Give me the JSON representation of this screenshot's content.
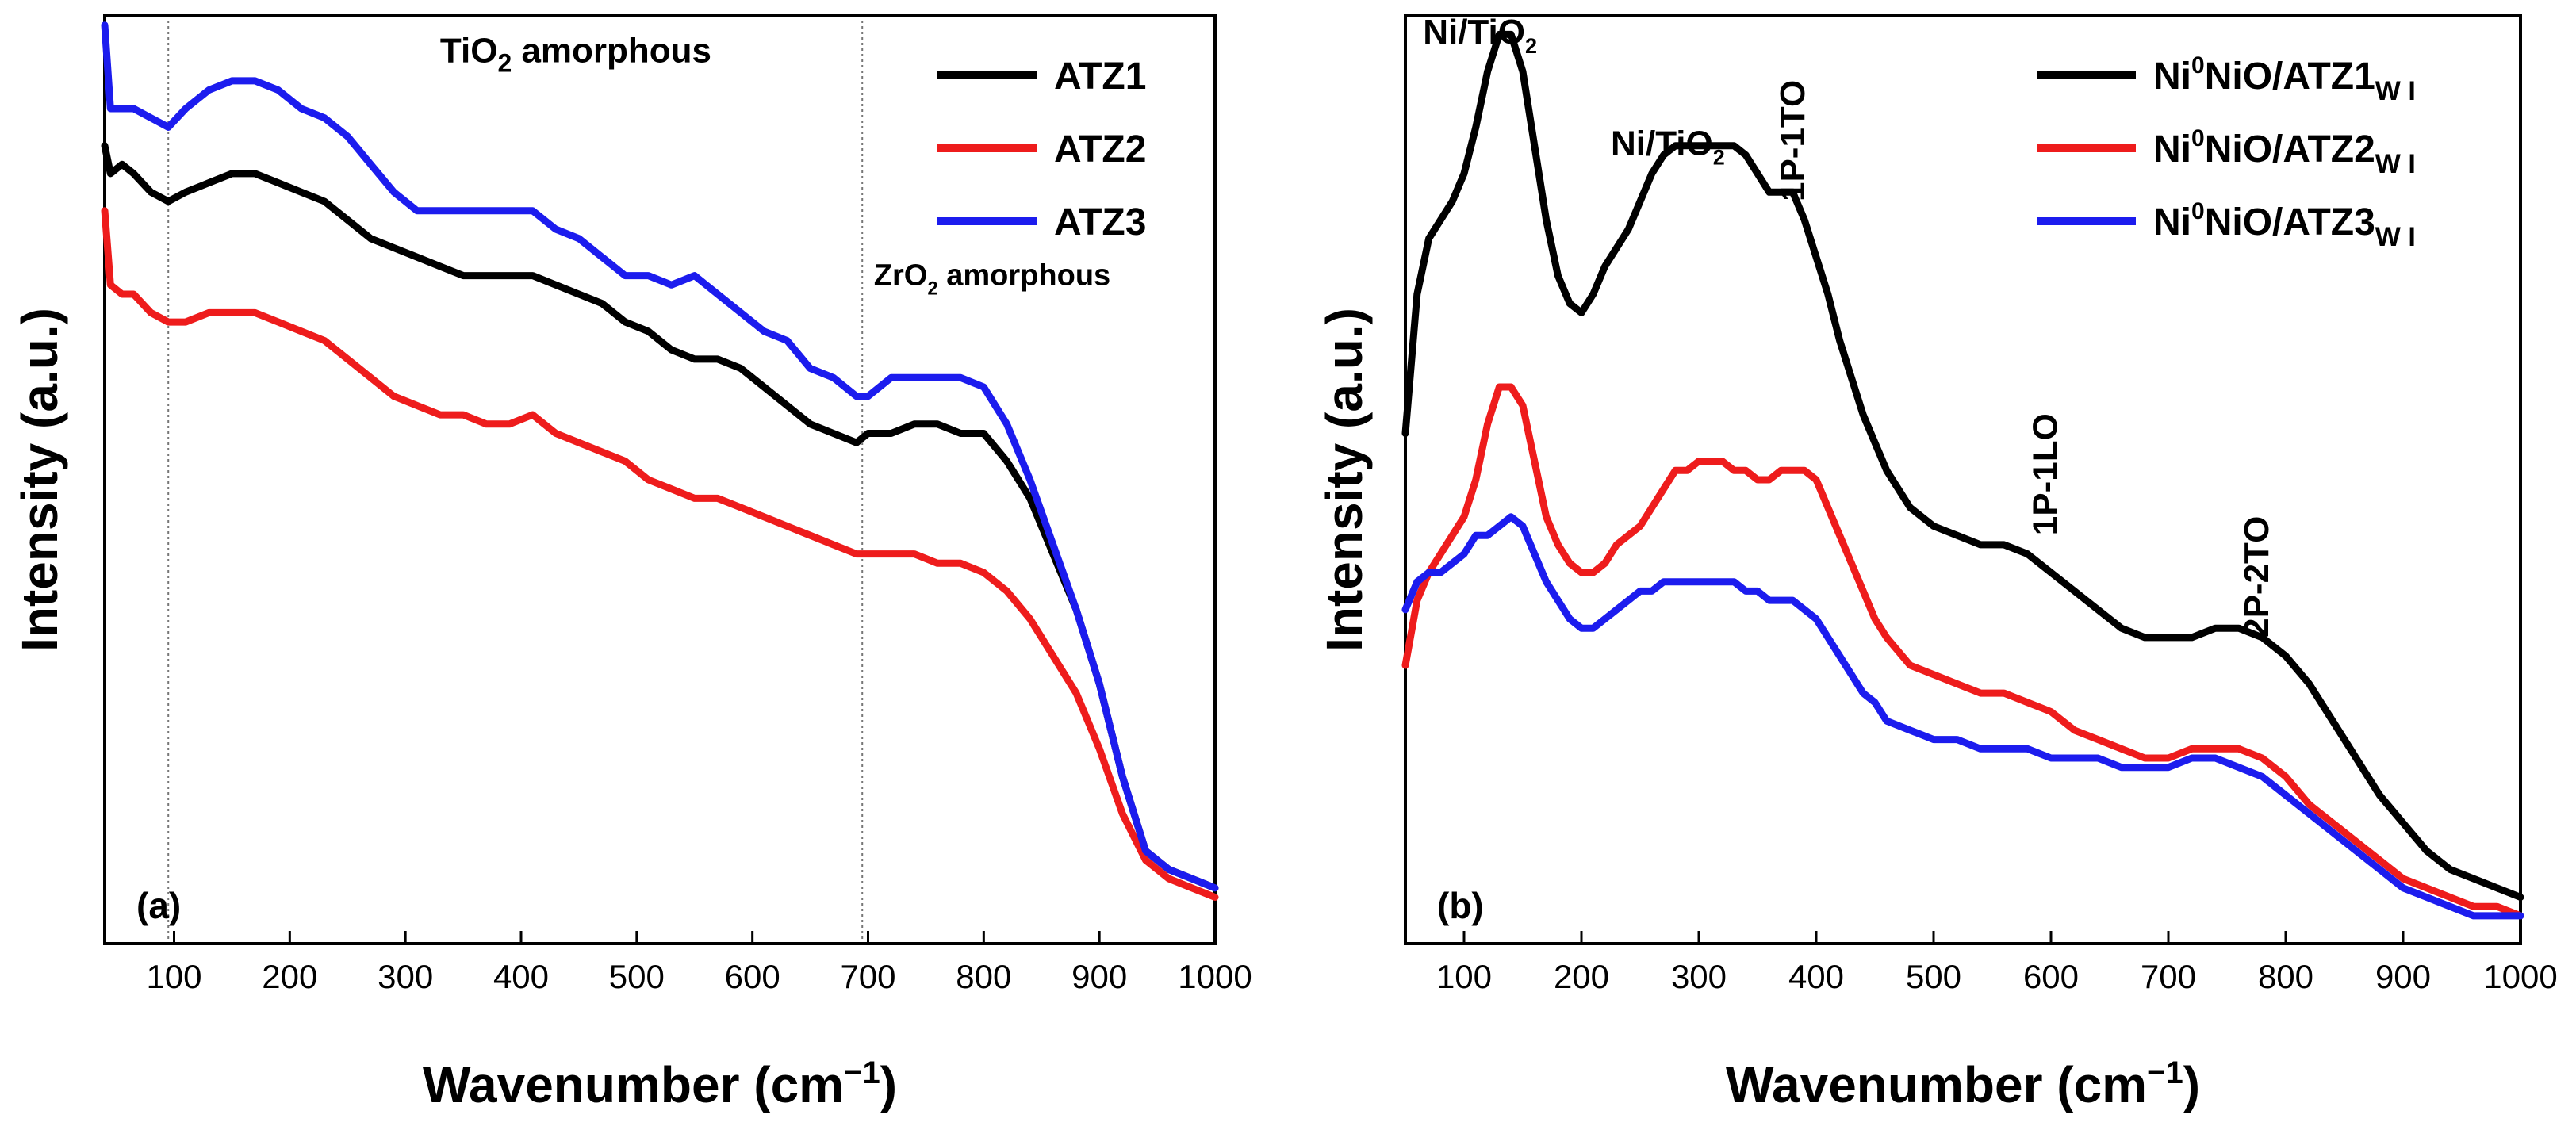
{
  "chart_data": [
    {
      "type": "line",
      "panel_label": "(a)",
      "xlabel": "Wavenumber (cm",
      "xlabel_sup": "−1",
      "xlabel_end": ")",
      "ylabel": "Intensity (a.u.)",
      "xlim": [
        40,
        1000
      ],
      "ylim": [
        0,
        1
      ],
      "x_ticks": [
        100,
        200,
        300,
        400,
        500,
        600,
        700,
        800,
        900,
        1000
      ],
      "x_tick_labels": [
        "100",
        "200",
        "300",
        "400",
        "500",
        "600",
        "700",
        "800",
        "900",
        "1000"
      ],
      "reference_lines": [
        95,
        695
      ],
      "legend": {
        "position": "top-right",
        "entries": [
          "ATZ1",
          "ATZ2",
          "ATZ3"
        ]
      },
      "annotations": [
        {
          "base": "TiO",
          "sub": "2",
          "rest": "  amorphous",
          "x": 330,
          "y": 0.95,
          "style": "large"
        },
        {
          "base": "ZrO",
          "sub": "2",
          "rest": " amorphous",
          "x": 705,
          "y": 0.71,
          "style": "small"
        }
      ],
      "series": [
        {
          "name": "ATZ1",
          "color": "#000000",
          "x": [
            40,
            45,
            55,
            65,
            80,
            95,
            110,
            130,
            150,
            170,
            190,
            210,
            230,
            250,
            270,
            290,
            310,
            330,
            350,
            370,
            390,
            410,
            430,
            450,
            470,
            490,
            510,
            530,
            550,
            570,
            590,
            610,
            630,
            650,
            670,
            690,
            700,
            720,
            740,
            760,
            780,
            800,
            820,
            840,
            860,
            880,
            900,
            920,
            940,
            960,
            980,
            1000
          ],
          "y": [
            0.86,
            0.83,
            0.84,
            0.83,
            0.81,
            0.8,
            0.81,
            0.82,
            0.83,
            0.83,
            0.82,
            0.81,
            0.8,
            0.78,
            0.76,
            0.75,
            0.74,
            0.73,
            0.72,
            0.72,
            0.72,
            0.72,
            0.71,
            0.7,
            0.69,
            0.67,
            0.66,
            0.64,
            0.63,
            0.63,
            0.62,
            0.6,
            0.58,
            0.56,
            0.55,
            0.54,
            0.55,
            0.55,
            0.56,
            0.56,
            0.55,
            0.55,
            0.52,
            0.48,
            0.42,
            0.36,
            0.28,
            0.18,
            0.1,
            0.08,
            0.07,
            0.06
          ]
        },
        {
          "name": "ATZ2",
          "color": "#ee1c1c",
          "x": [
            40,
            45,
            55,
            65,
            80,
            95,
            110,
            130,
            150,
            170,
            190,
            210,
            230,
            250,
            270,
            290,
            310,
            330,
            350,
            370,
            390,
            410,
            430,
            450,
            470,
            490,
            510,
            530,
            550,
            570,
            590,
            610,
            630,
            650,
            670,
            690,
            700,
            720,
            740,
            760,
            780,
            800,
            820,
            840,
            860,
            880,
            900,
            920,
            940,
            960,
            980,
            1000
          ],
          "y": [
            0.79,
            0.71,
            0.7,
            0.7,
            0.68,
            0.67,
            0.67,
            0.68,
            0.68,
            0.68,
            0.67,
            0.66,
            0.65,
            0.63,
            0.61,
            0.59,
            0.58,
            0.57,
            0.57,
            0.56,
            0.56,
            0.57,
            0.55,
            0.54,
            0.53,
            0.52,
            0.5,
            0.49,
            0.48,
            0.48,
            0.47,
            0.46,
            0.45,
            0.44,
            0.43,
            0.42,
            0.42,
            0.42,
            0.42,
            0.41,
            0.41,
            0.4,
            0.38,
            0.35,
            0.31,
            0.27,
            0.21,
            0.14,
            0.09,
            0.07,
            0.06,
            0.05
          ]
        },
        {
          "name": "ATZ3",
          "color": "#1c1cee",
          "x": [
            40,
            45,
            55,
            65,
            80,
            95,
            110,
            130,
            150,
            170,
            190,
            210,
            230,
            250,
            270,
            290,
            310,
            330,
            350,
            370,
            390,
            410,
            430,
            450,
            470,
            490,
            510,
            530,
            550,
            570,
            590,
            610,
            630,
            650,
            670,
            690,
            700,
            720,
            740,
            760,
            780,
            800,
            820,
            840,
            860,
            880,
            900,
            920,
            940,
            960,
            980,
            1000
          ],
          "y": [
            0.99,
            0.9,
            0.9,
            0.9,
            0.89,
            0.88,
            0.9,
            0.92,
            0.93,
            0.93,
            0.92,
            0.9,
            0.89,
            0.87,
            0.84,
            0.81,
            0.79,
            0.79,
            0.79,
            0.79,
            0.79,
            0.79,
            0.77,
            0.76,
            0.74,
            0.72,
            0.72,
            0.71,
            0.72,
            0.7,
            0.68,
            0.66,
            0.65,
            0.62,
            0.61,
            0.59,
            0.59,
            0.61,
            0.61,
            0.61,
            0.61,
            0.6,
            0.56,
            0.5,
            0.43,
            0.36,
            0.28,
            0.18,
            0.1,
            0.08,
            0.07,
            0.06
          ]
        }
      ]
    },
    {
      "type": "line",
      "panel_label": "(b)",
      "xlabel": "Wavenumber (cm",
      "xlabel_sup": "−1",
      "xlabel_end": ")",
      "ylabel": "Intensity (a.u.)",
      "xlim": [
        50,
        1000
      ],
      "ylim": [
        0,
        1
      ],
      "x_ticks": [
        100,
        200,
        300,
        400,
        500,
        600,
        700,
        800,
        900,
        1000
      ],
      "x_tick_labels": [
        "100",
        "200",
        "300",
        "400",
        "500",
        "600",
        "700",
        "800",
        "900",
        "1000"
      ],
      "legend": {
        "position": "top-right",
        "entries": [
          {
            "base": "Ni",
            "sup": "0",
            "mid": "NiO/ATZ1",
            "sub": "W I"
          },
          {
            "base": "Ni",
            "sup": "0",
            "mid": "NiO/ATZ2",
            "sub": "W I"
          },
          {
            "base": "Ni",
            "sup": "0",
            "mid": "NiO/ATZ3",
            "sub": "W I"
          }
        ]
      },
      "annotations": [
        {
          "text": "Ni/TiO",
          "sub": "2",
          "x": 65,
          "y": 0.97,
          "rotate": false
        },
        {
          "text": "Ni/TiO",
          "sub": "2",
          "x": 225,
          "y": 0.85,
          "rotate": false
        },
        {
          "text": "1P-1TO",
          "x": 390,
          "y": 0.8,
          "rotate": true
        },
        {
          "text": "1P-1LO",
          "x": 605,
          "y": 0.44,
          "rotate": true
        },
        {
          "text": "2P-2TO",
          "x": 785,
          "y": 0.33,
          "rotate": true
        }
      ],
      "series": [
        {
          "name": "Ni0NiO/ATZ1 W I",
          "color": "#000000",
          "x": [
            50,
            60,
            70,
            80,
            90,
            100,
            110,
            120,
            130,
            140,
            150,
            160,
            170,
            180,
            190,
            200,
            210,
            220,
            230,
            240,
            250,
            260,
            270,
            280,
            290,
            300,
            310,
            320,
            330,
            340,
            350,
            360,
            370,
            380,
            390,
            400,
            410,
            420,
            430,
            440,
            450,
            460,
            480,
            500,
            520,
            540,
            560,
            580,
            600,
            620,
            640,
            660,
            680,
            700,
            720,
            740,
            760,
            780,
            800,
            820,
            840,
            860,
            880,
            900,
            920,
            940,
            960,
            980,
            1000
          ],
          "y": [
            0.55,
            0.7,
            0.76,
            0.78,
            0.8,
            0.83,
            0.88,
            0.94,
            0.98,
            0.98,
            0.94,
            0.86,
            0.78,
            0.72,
            0.69,
            0.68,
            0.7,
            0.73,
            0.75,
            0.77,
            0.8,
            0.83,
            0.85,
            0.86,
            0.86,
            0.86,
            0.86,
            0.86,
            0.86,
            0.85,
            0.83,
            0.81,
            0.81,
            0.81,
            0.78,
            0.74,
            0.7,
            0.65,
            0.61,
            0.57,
            0.54,
            0.51,
            0.47,
            0.45,
            0.44,
            0.43,
            0.43,
            0.42,
            0.4,
            0.38,
            0.36,
            0.34,
            0.33,
            0.33,
            0.33,
            0.34,
            0.34,
            0.33,
            0.31,
            0.28,
            0.24,
            0.2,
            0.16,
            0.13,
            0.1,
            0.08,
            0.07,
            0.06,
            0.05
          ]
        },
        {
          "name": "Ni0NiO/ATZ2 W I",
          "color": "#ee1c1c",
          "x": [
            50,
            60,
            70,
            80,
            90,
            100,
            110,
            120,
            130,
            140,
            150,
            160,
            170,
            180,
            190,
            200,
            210,
            220,
            230,
            240,
            250,
            260,
            270,
            280,
            290,
            300,
            310,
            320,
            330,
            340,
            350,
            360,
            370,
            380,
            390,
            400,
            410,
            420,
            430,
            440,
            450,
            460,
            480,
            500,
            520,
            540,
            560,
            580,
            600,
            620,
            640,
            660,
            680,
            700,
            720,
            740,
            760,
            780,
            800,
            820,
            840,
            860,
            880,
            900,
            920,
            940,
            960,
            980,
            1000
          ],
          "y": [
            0.3,
            0.37,
            0.4,
            0.42,
            0.44,
            0.46,
            0.5,
            0.56,
            0.6,
            0.6,
            0.58,
            0.52,
            0.46,
            0.43,
            0.41,
            0.4,
            0.4,
            0.41,
            0.43,
            0.44,
            0.45,
            0.47,
            0.49,
            0.51,
            0.51,
            0.52,
            0.52,
            0.52,
            0.51,
            0.51,
            0.5,
            0.5,
            0.51,
            0.51,
            0.51,
            0.5,
            0.47,
            0.44,
            0.41,
            0.38,
            0.35,
            0.33,
            0.3,
            0.29,
            0.28,
            0.27,
            0.27,
            0.26,
            0.25,
            0.23,
            0.22,
            0.21,
            0.2,
            0.2,
            0.21,
            0.21,
            0.21,
            0.2,
            0.18,
            0.15,
            0.13,
            0.11,
            0.09,
            0.07,
            0.06,
            0.05,
            0.04,
            0.04,
            0.03
          ]
        },
        {
          "name": "Ni0NiO/ATZ3 W I",
          "color": "#1c1cee",
          "x": [
            50,
            60,
            70,
            80,
            90,
            100,
            110,
            120,
            130,
            140,
            150,
            160,
            170,
            180,
            190,
            200,
            210,
            220,
            230,
            240,
            250,
            260,
            270,
            280,
            290,
            300,
            310,
            320,
            330,
            340,
            350,
            360,
            370,
            380,
            390,
            400,
            410,
            420,
            430,
            440,
            450,
            460,
            480,
            500,
            520,
            540,
            560,
            580,
            600,
            620,
            640,
            660,
            680,
            700,
            720,
            740,
            760,
            780,
            800,
            820,
            840,
            860,
            880,
            900,
            920,
            940,
            960,
            980,
            1000
          ],
          "y": [
            0.36,
            0.39,
            0.4,
            0.4,
            0.41,
            0.42,
            0.44,
            0.44,
            0.45,
            0.46,
            0.45,
            0.42,
            0.39,
            0.37,
            0.35,
            0.34,
            0.34,
            0.35,
            0.36,
            0.37,
            0.38,
            0.38,
            0.39,
            0.39,
            0.39,
            0.39,
            0.39,
            0.39,
            0.39,
            0.38,
            0.38,
            0.37,
            0.37,
            0.37,
            0.36,
            0.35,
            0.33,
            0.31,
            0.29,
            0.27,
            0.26,
            0.24,
            0.23,
            0.22,
            0.22,
            0.21,
            0.21,
            0.21,
            0.2,
            0.2,
            0.2,
            0.19,
            0.19,
            0.19,
            0.2,
            0.2,
            0.19,
            0.18,
            0.16,
            0.14,
            0.12,
            0.1,
            0.08,
            0.06,
            0.05,
            0.04,
            0.03,
            0.03,
            0.03
          ]
        }
      ]
    }
  ]
}
